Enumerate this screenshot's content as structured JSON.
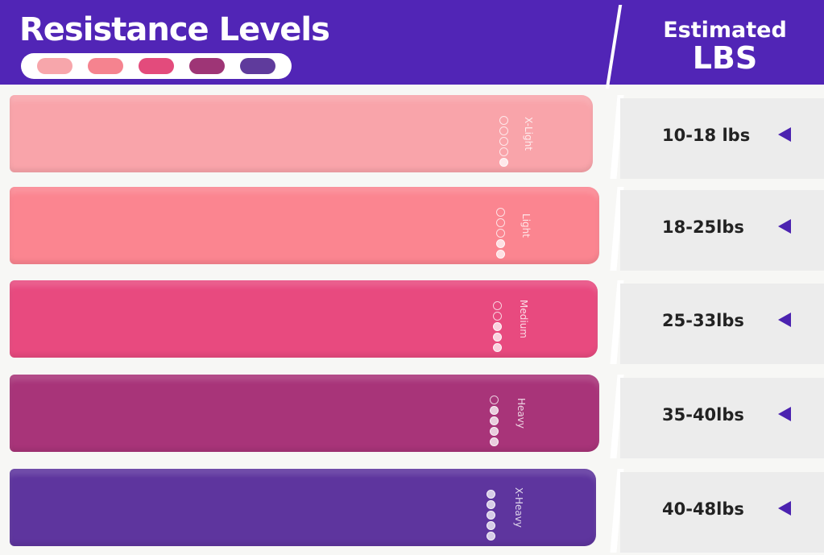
{
  "header": {
    "title": "Resistance Levels",
    "estimated_label": "Estimated",
    "lbs_label": "LBS",
    "swatch_colors": [
      "#f7a6ab",
      "#f5838f",
      "#e34b7c",
      "#9e3576",
      "#5f3b9c"
    ]
  },
  "bands": [
    {
      "label": "X-Light",
      "level": 1,
      "range": "10-18 lbs",
      "color": "#f9a4aa"
    },
    {
      "label": "Light",
      "level": 2,
      "range": "18-25lbs",
      "color": "#fb8590"
    },
    {
      "label": "Medium",
      "level": 3,
      "range": "25-33lbs",
      "color": "#e84a7f"
    },
    {
      "label": "Heavy",
      "level": 4,
      "range": "35-40lbs",
      "color": "#a83479"
    },
    {
      "label": "X-Heavy",
      "level": 5,
      "range": "40-48lbs",
      "color": "#5e359e"
    }
  ],
  "accent_color": "#5125b6"
}
